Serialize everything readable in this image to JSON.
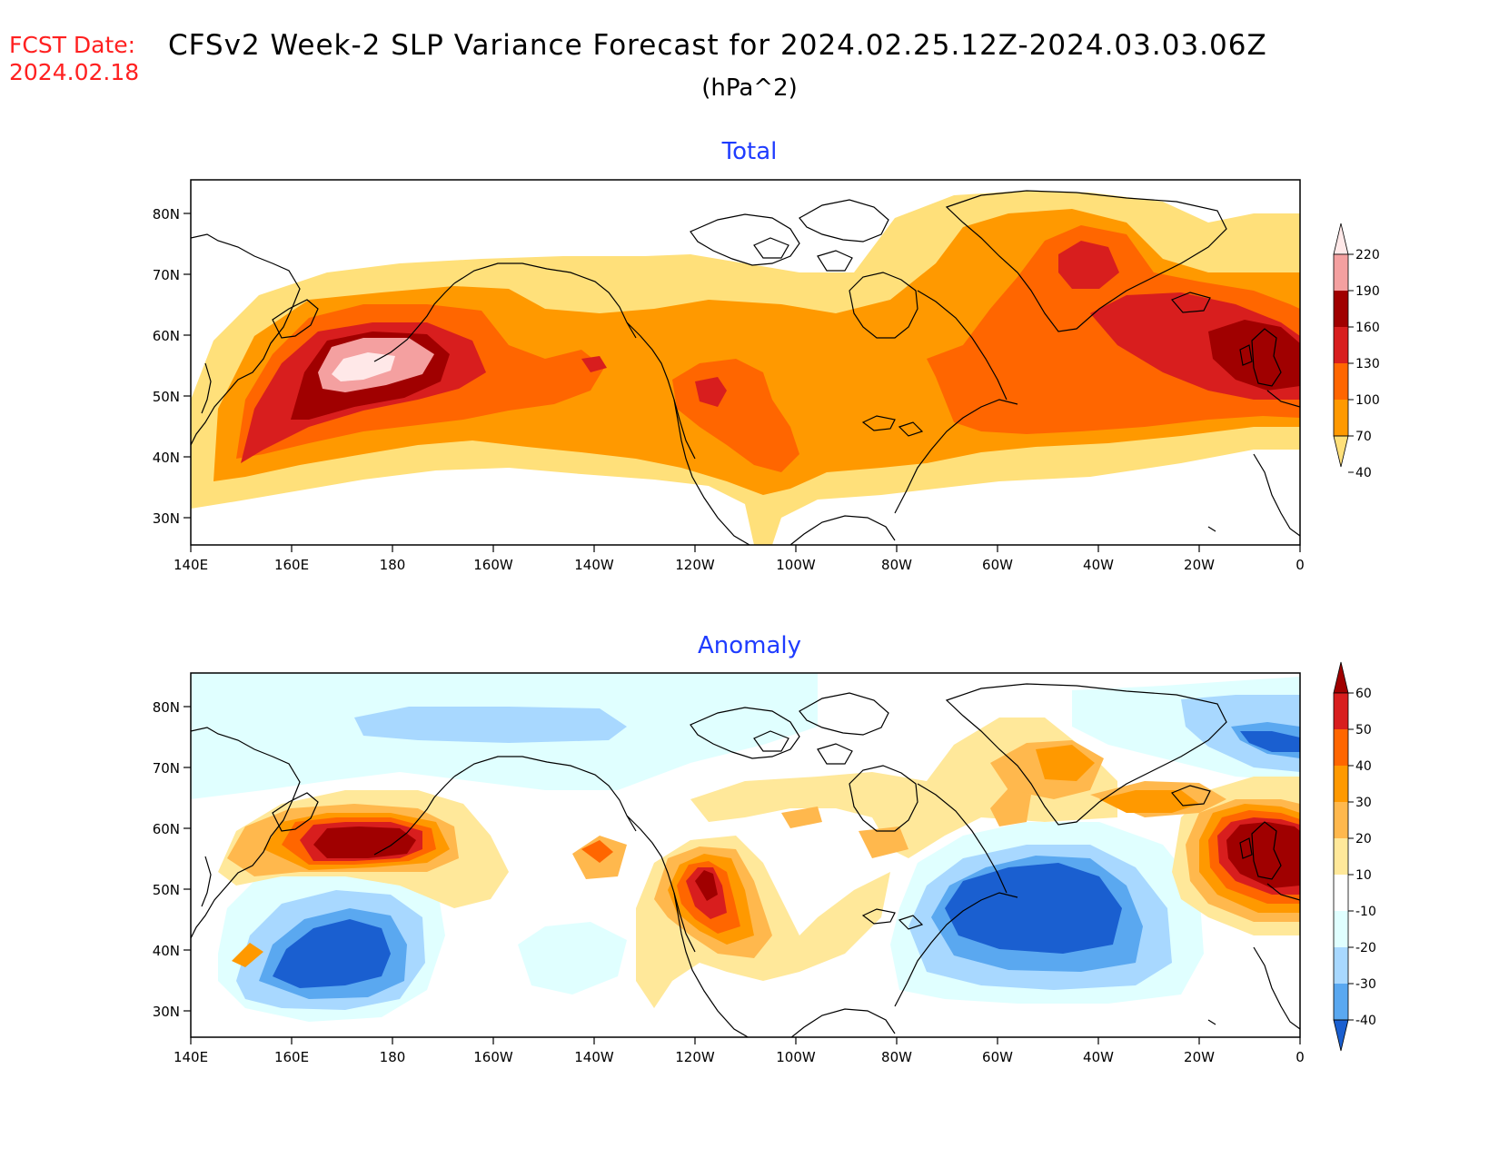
{
  "header": {
    "fcst_label": "FCST Date:",
    "fcst_date": "2024.02.18",
    "title": "CFSv2 Week-2 SLP Variance Forecast for 2024.02.25.12Z-2024.03.03.06Z",
    "units": "(hPa^2)"
  },
  "axes": {
    "lat_labels": [
      "80N",
      "70N",
      "60N",
      "50N",
      "40N",
      "30N"
    ],
    "lon_labels": [
      "140E",
      "160E",
      "180",
      "160W",
      "140W",
      "120W",
      "100W",
      "80W",
      "60W",
      "40W",
      "20W",
      "0"
    ]
  },
  "panels": [
    {
      "title": "Total",
      "colorbar": {
        "levels": [
          "220",
          "190",
          "160",
          "130",
          "100",
          "70",
          "40"
        ],
        "colors": [
          "#ffe8e8",
          "#f4a0a0",
          "#a00000",
          "#d81e1e",
          "#ff6600",
          "#ff9900",
          "#ffe07a"
        ]
      }
    },
    {
      "title": "Anomaly",
      "colorbar": {
        "levels": [
          "60",
          "50",
          "40",
          "30",
          "20",
          "10",
          "-10",
          "-20",
          "-30",
          "-40"
        ],
        "colors": [
          "#a00000",
          "#d81e1e",
          "#ff6600",
          "#ff9900",
          "#ffb84d",
          "#ffe89a",
          "#ffffff",
          "#e0ffff",
          "#a8d8ff",
          "#5aa8f0",
          "#1a5fd0"
        ]
      }
    }
  ]
}
